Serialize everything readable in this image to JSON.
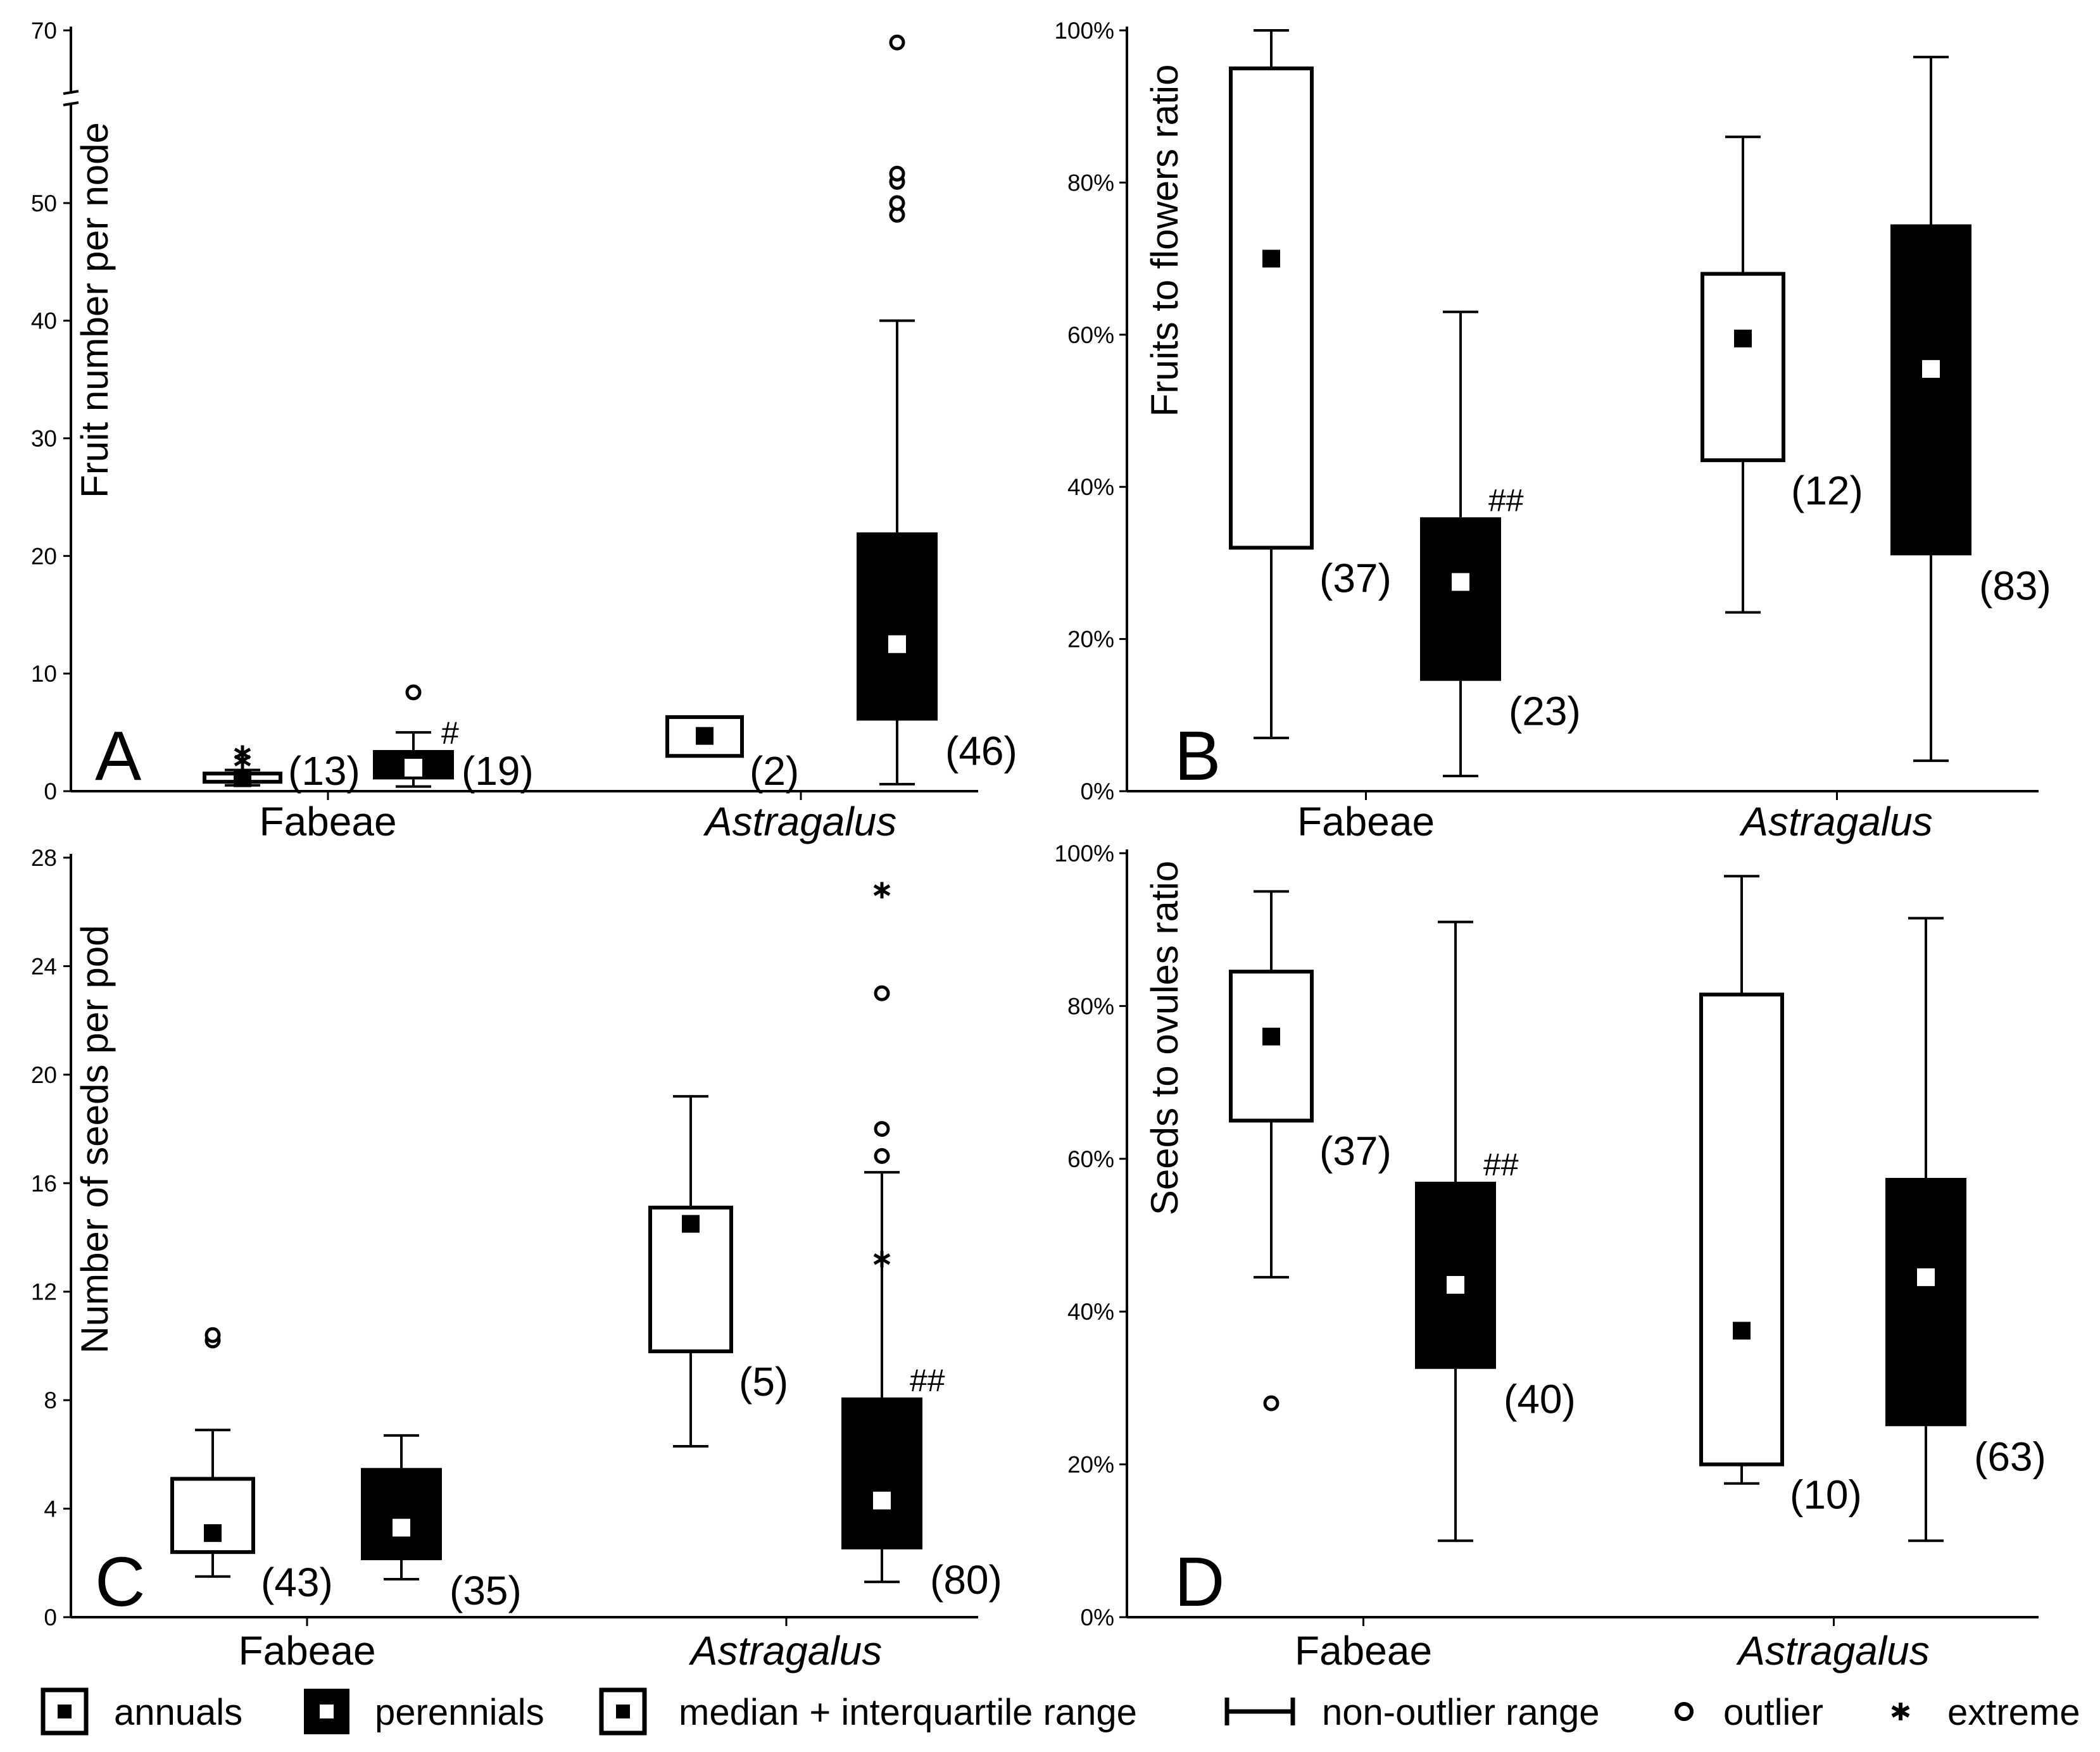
{
  "chart_data": [
    {
      "panel": "A",
      "type": "box",
      "ylabel": "Fruit number per node",
      "ylim": [
        0,
        70
      ],
      "axis_break": [
        60,
        65
      ],
      "yticks": [
        0,
        10,
        20,
        30,
        40,
        50,
        70
      ],
      "ytick_labels": [
        "0",
        "10",
        "20",
        "30",
        "40",
        "50",
        "70"
      ],
      "categories": [
        "Fabeae",
        "Astragalus"
      ],
      "groups": [
        {
          "cat": 0,
          "type": "annual",
          "q1": 0.8,
          "med": 1.1,
          "q3": 1.5,
          "wlo": 0.5,
          "whi": 1.8,
          "outliers": [],
          "extremes": [
            2.6,
            3.2
          ],
          "n": "(13)",
          "mark": ""
        },
        {
          "cat": 0,
          "type": "perennial",
          "q1": 1.0,
          "med": 2.0,
          "q3": 3.5,
          "wlo": 0.4,
          "whi": 5.0,
          "outliers": [
            8.4
          ],
          "extremes": [],
          "n": "(19)",
          "mark": "#"
        },
        {
          "cat": 1,
          "type": "annual",
          "q1": 3.0,
          "med": 4.7,
          "q3": 6.3,
          "wlo": null,
          "whi": null,
          "outliers": [],
          "extremes": [],
          "n": "(2)",
          "mark": ""
        },
        {
          "cat": 1,
          "type": "perennial",
          "q1": 6.0,
          "med": 12.5,
          "q3": 22.0,
          "wlo": 0.6,
          "whi": 40.0,
          "outliers": [
            49.0,
            50.0,
            51.8,
            52.5,
            67.8
          ],
          "extremes": [],
          "n": "(46)",
          "mark": ""
        }
      ]
    },
    {
      "panel": "B",
      "type": "box",
      "ylabel": "Fruits to flowers ratio",
      "ylim": [
        0,
        100
      ],
      "yticks": [
        0,
        20,
        40,
        60,
        80,
        100
      ],
      "ytick_labels": [
        "0%",
        "20%",
        "40%",
        "60%",
        "80%",
        "100%"
      ],
      "categories": [
        "Fabeae",
        "Astragalus"
      ],
      "groups": [
        {
          "cat": 0,
          "type": "annual",
          "q1": 32,
          "med": 70,
          "q3": 95,
          "wlo": 7,
          "whi": 100,
          "outliers": [],
          "extremes": [],
          "n": "(37)",
          "mark": ""
        },
        {
          "cat": 0,
          "type": "perennial",
          "q1": 14.5,
          "med": 27.5,
          "q3": 36,
          "wlo": 2,
          "whi": 63,
          "outliers": [],
          "extremes": [],
          "n": "(23)",
          "mark": "##"
        },
        {
          "cat": 1,
          "type": "annual",
          "q1": 43.5,
          "med": 59.5,
          "q3": 68,
          "wlo": 23.5,
          "whi": 86,
          "outliers": [],
          "extremes": [],
          "n": "(12)",
          "mark": ""
        },
        {
          "cat": 1,
          "type": "perennial",
          "q1": 31,
          "med": 55.5,
          "q3": 74.5,
          "wlo": 4,
          "whi": 96.5,
          "outliers": [],
          "extremes": [],
          "n": "(83)",
          "mark": ""
        }
      ]
    },
    {
      "panel": "C",
      "type": "box",
      "ylabel": "Number of seeds per pod",
      "ylim": [
        0,
        28
      ],
      "yticks": [
        0,
        4,
        8,
        12,
        16,
        20,
        24,
        28
      ],
      "ytick_labels": [
        "0",
        "4",
        "8",
        "12",
        "16",
        "20",
        "24",
        "28"
      ],
      "categories": [
        "Fabeae",
        "Astragalus"
      ],
      "groups": [
        {
          "cat": 0,
          "type": "annual",
          "q1": 2.4,
          "med": 3.1,
          "q3": 5.1,
          "wlo": 1.5,
          "whi": 6.9,
          "outliers": [
            10.2,
            10.4
          ],
          "extremes": [],
          "n": "(43)",
          "mark": ""
        },
        {
          "cat": 0,
          "type": "perennial",
          "q1": 2.1,
          "med": 3.3,
          "q3": 5.5,
          "wlo": 1.4,
          "whi": 6.7,
          "outliers": [],
          "extremes": [],
          "n": "(35)",
          "mark": ""
        },
        {
          "cat": 1,
          "type": "annual",
          "q1": 9.8,
          "med": 14.5,
          "q3": 15.1,
          "wlo": 6.3,
          "whi": 19.2,
          "outliers": [],
          "extremes": [],
          "n": "(5)",
          "mark": ""
        },
        {
          "cat": 1,
          "type": "perennial",
          "q1": 2.5,
          "med": 4.3,
          "q3": 8.1,
          "wlo": 1.3,
          "whi": 16.4,
          "outliers": [
            17.0,
            18.0,
            23.0
          ],
          "extremes": [
            13.2,
            26.8
          ],
          "n": "(80)",
          "mark": "##"
        }
      ]
    },
    {
      "panel": "D",
      "type": "box",
      "ylabel": "Seeds to ovules ratio",
      "ylim": [
        0,
        100
      ],
      "yticks": [
        0,
        20,
        40,
        60,
        80,
        100
      ],
      "ytick_labels": [
        "0%",
        "20%",
        "40%",
        "60%",
        "80%",
        "100%"
      ],
      "categories": [
        "Fabeae",
        "Astragalus"
      ],
      "groups": [
        {
          "cat": 0,
          "type": "annual",
          "q1": 65,
          "med": 76,
          "q3": 84.5,
          "wlo": 44.5,
          "whi": 95,
          "outliers": [
            28
          ],
          "extremes": [],
          "n": "(37)",
          "mark": ""
        },
        {
          "cat": 0,
          "type": "perennial",
          "q1": 32.5,
          "med": 43.5,
          "q3": 57,
          "wlo": 10,
          "whi": 91,
          "outliers": [],
          "extremes": [],
          "n": "(40)",
          "mark": "##"
        },
        {
          "cat": 1,
          "type": "annual",
          "q1": 20,
          "med": 37.5,
          "q3": 81.5,
          "wlo": 17.5,
          "whi": 97,
          "outliers": [],
          "extremes": [],
          "n": "(10)",
          "mark": ""
        },
        {
          "cat": 1,
          "type": "perennial",
          "q1": 25,
          "med": 44.5,
          "q3": 57.5,
          "wlo": 10,
          "whi": 91.5,
          "outliers": [],
          "extremes": [],
          "n": "(63)",
          "mark": ""
        }
      ]
    }
  ],
  "legend": {
    "annuals": "annuals",
    "perennials": "perennials",
    "median_iqr": "median + interquartile range",
    "non_outlier": "non-outlier range",
    "outlier": "outlier",
    "extreme": "extreme"
  },
  "colors": {
    "ink": "#000000",
    "paper": "#ffffff"
  }
}
